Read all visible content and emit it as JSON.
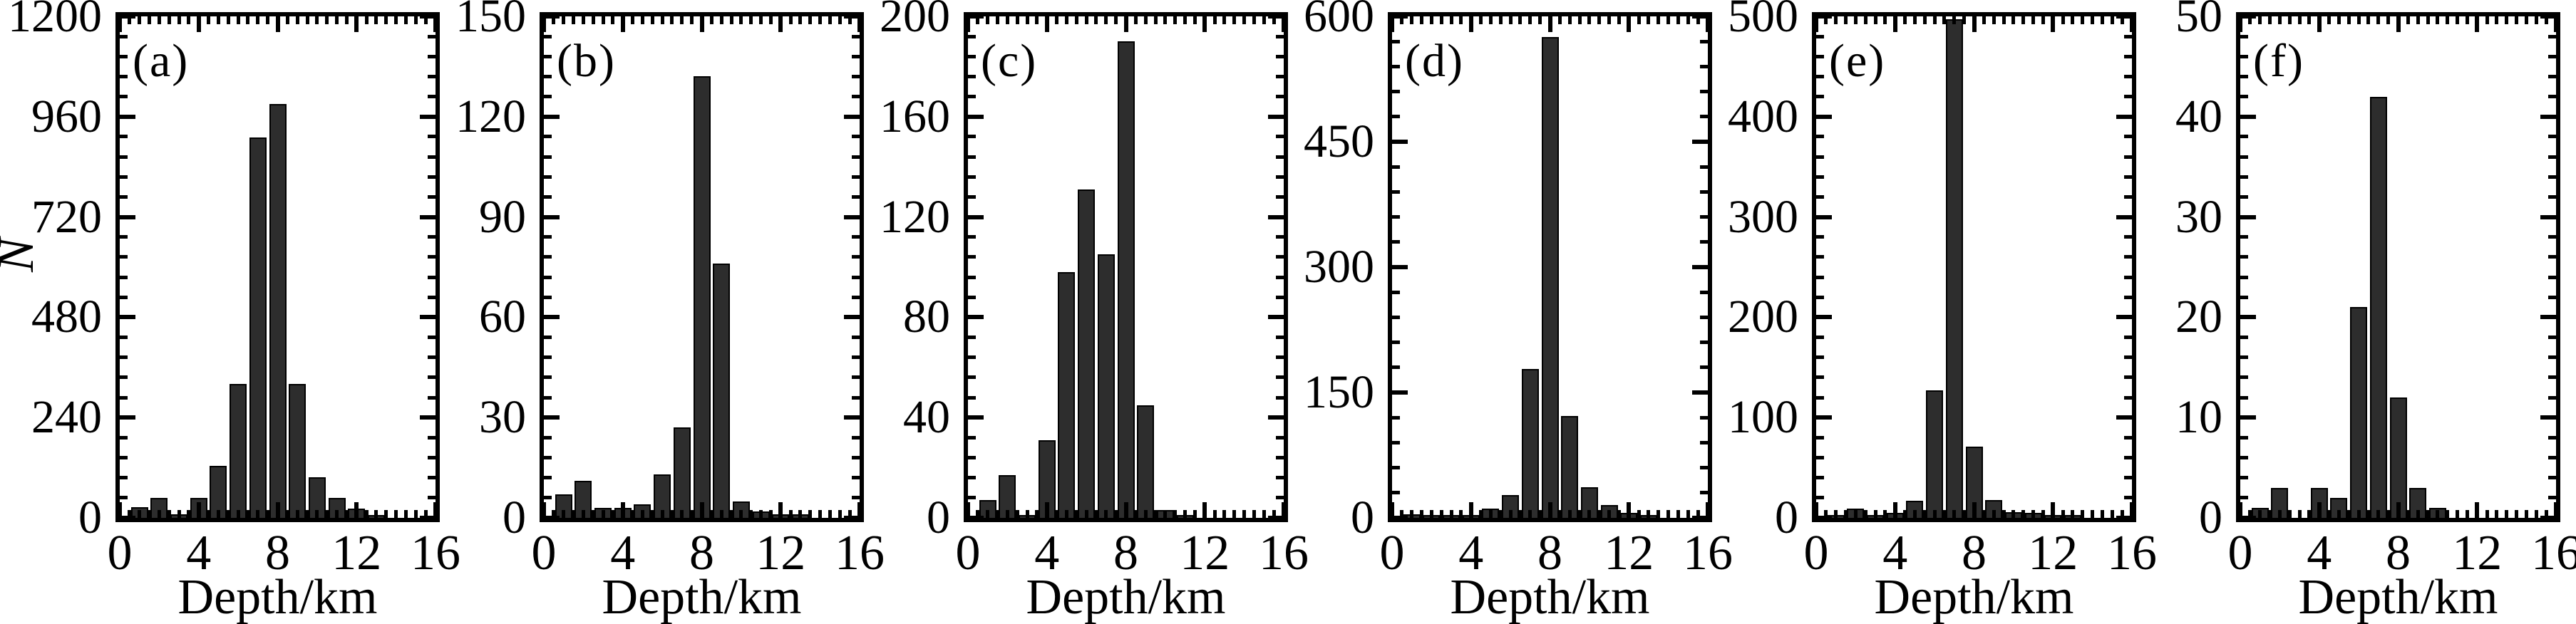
{
  "figure": {
    "ylabel": "N",
    "xlabel": "Depth/km",
    "x_ticks": [
      "0",
      "4",
      "8",
      "12",
      "16"
    ],
    "x_range": [
      0,
      16
    ]
  },
  "chart_data": [
    {
      "type": "bar",
      "panel": "(a)",
      "xlabel": "Depth/km",
      "ylabel": "N",
      "ylim": [
        0,
        1200
      ],
      "yticks": [
        0,
        240,
        480,
        720,
        960,
        1200
      ],
      "x": [
        1,
        2,
        3,
        4,
        5,
        6,
        7,
        8,
        9,
        10,
        11,
        12,
        13,
        14
      ],
      "values": [
        25,
        48,
        8,
        48,
        125,
        320,
        910,
        990,
        320,
        98,
        48,
        22,
        3,
        0
      ]
    },
    {
      "type": "bar",
      "panel": "(b)",
      "xlabel": "Depth/km",
      "ylim": [
        0,
        150
      ],
      "yticks": [
        0,
        30,
        60,
        90,
        120,
        150
      ],
      "x": [
        1,
        2,
        3,
        4,
        5,
        6,
        7,
        8,
        9,
        10,
        11,
        12,
        13,
        14
      ],
      "values": [
        7,
        11,
        3,
        3,
        4,
        13,
        27,
        132,
        76,
        5,
        2,
        1,
        1,
        0
      ]
    },
    {
      "type": "bar",
      "panel": "(c)",
      "xlabel": "Depth/km",
      "ylim": [
        0,
        200
      ],
      "yticks": [
        0,
        40,
        80,
        120,
        160,
        200
      ],
      "x": [
        1,
        2,
        3,
        4,
        5,
        6,
        7,
        8,
        9,
        10,
        11,
        12,
        13,
        14
      ],
      "values": [
        7,
        17,
        1,
        31,
        98,
        131,
        105,
        190,
        45,
        3,
        1,
        0,
        0,
        0
      ]
    },
    {
      "type": "bar",
      "panel": "(d)",
      "xlabel": "Depth/km",
      "ylim": [
        0,
        600
      ],
      "yticks": [
        0,
        150,
        300,
        450,
        600
      ],
      "x": [
        1,
        2,
        3,
        4,
        5,
        6,
        7,
        8,
        9,
        10,
        11,
        12,
        13,
        14
      ],
      "values": [
        4,
        3,
        1,
        2,
        11,
        27,
        178,
        575,
        122,
        37,
        15,
        6,
        3,
        0
      ]
    },
    {
      "type": "bar",
      "panel": "(e)",
      "xlabel": "Depth/km",
      "ylim": [
        0,
        500
      ],
      "yticks": [
        0,
        100,
        200,
        300,
        400,
        500
      ],
      "x": [
        1,
        2,
        3,
        4,
        5,
        6,
        7,
        8,
        9,
        10,
        11,
        12,
        13,
        14
      ],
      "values": [
        2,
        9,
        2,
        5,
        17,
        127,
        497,
        71,
        18,
        6,
        5,
        2,
        3,
        0
      ]
    },
    {
      "type": "bar",
      "panel": "(f)",
      "xlabel": "Depth/km",
      "ylim": [
        0,
        50
      ],
      "yticks": [
        0,
        10,
        20,
        30,
        40,
        50
      ],
      "x": [
        1,
        2,
        3,
        4,
        5,
        6,
        7,
        8,
        9,
        10,
        11,
        12,
        13,
        14
      ],
      "values": [
        1,
        3,
        0,
        3,
        2,
        21,
        42,
        12,
        3,
        1,
        0,
        0,
        0,
        0
      ]
    }
  ]
}
